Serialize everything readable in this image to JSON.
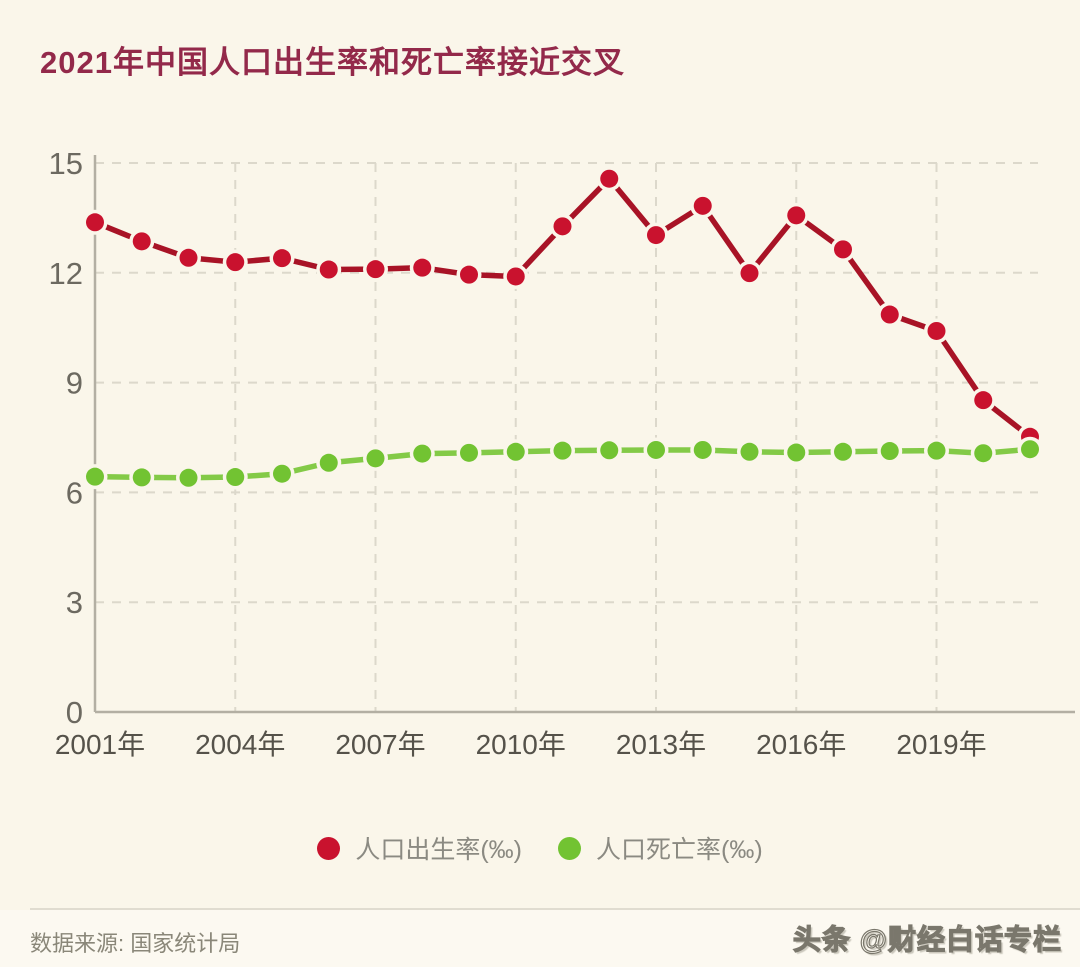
{
  "title": "2021年中国人口出生率和死亡率接近交叉",
  "chart_data": {
    "type": "line",
    "title": "2021年中国人口出生率和死亡率接近交叉",
    "x": [
      2001,
      2002,
      2003,
      2004,
      2005,
      2006,
      2007,
      2008,
      2009,
      2010,
      2011,
      2012,
      2013,
      2014,
      2015,
      2016,
      2017,
      2018,
      2019,
      2020,
      2021
    ],
    "series": [
      {
        "name": "人口出生率(‰)",
        "color": "#c9122e",
        "line_color": "#a81326",
        "values": [
          13.38,
          12.86,
          12.41,
          12.29,
          12.4,
          12.09,
          12.1,
          12.14,
          11.95,
          11.9,
          13.27,
          14.57,
          13.03,
          13.83,
          11.99,
          13.57,
          12.64,
          10.86,
          10.41,
          8.52,
          7.52
        ]
      },
      {
        "name": "人口死亡率(‰)",
        "color": "#72c332",
        "line_color": "#83ca47",
        "values": [
          6.43,
          6.41,
          6.4,
          6.42,
          6.51,
          6.81,
          6.93,
          7.06,
          7.08,
          7.11,
          7.14,
          7.15,
          7.16,
          7.16,
          7.11,
          7.09,
          7.11,
          7.13,
          7.14,
          7.07,
          7.18
        ]
      }
    ],
    "ylim": [
      0,
      15
    ],
    "yticks": [
      0,
      3,
      6,
      9,
      12,
      15
    ],
    "xtick_years": [
      2001,
      2004,
      2007,
      2010,
      2013,
      2016,
      2019
    ],
    "xtick_labels": [
      "2001年",
      "2004年",
      "2007年",
      "2010年",
      "2013年",
      "2016年",
      "2019年"
    ],
    "grid": "dashed",
    "legend_position": "bottom"
  },
  "footer": {
    "source": "数据来源: 国家统计局",
    "watermark": "头条 @财经白话专栏"
  },
  "colors": {
    "background": "#faf6ea",
    "footer_bg": "#fcf9f1",
    "title": "#93294a",
    "grid": "#dcd8cb",
    "axis": "#b3afa3",
    "y_tick_label": "#6c6960",
    "x_tick_label": "#55524a",
    "legend_text": "#8b8a82",
    "source_text": "#8a8779",
    "divider": "#e0dcd0",
    "watermark_fill": "#fbf8ee",
    "watermark_stroke": "#7a776c"
  }
}
